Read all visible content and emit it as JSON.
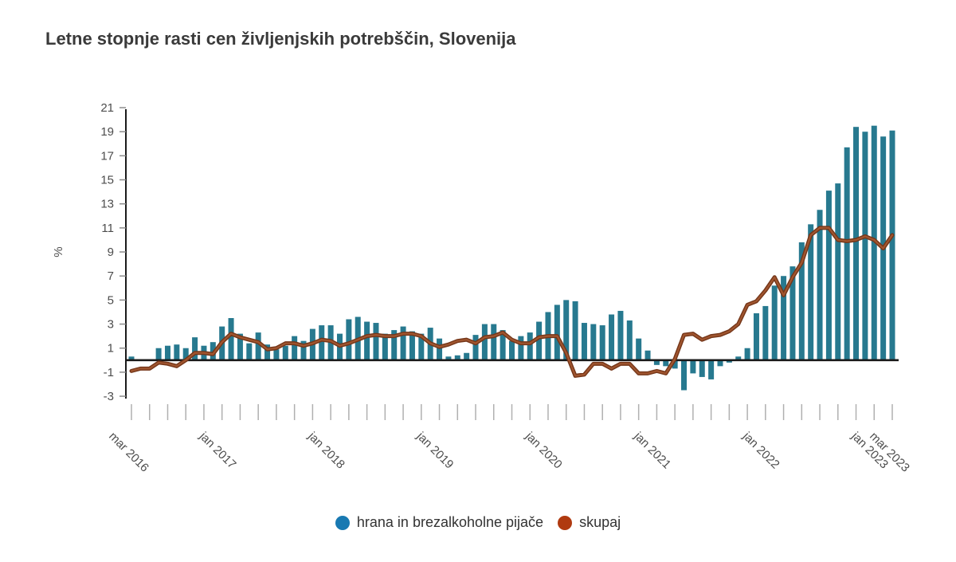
{
  "title": "Letne stopnje rasti cen življenjskih potrebščin, Slovenija",
  "colors": {
    "title_text": "#3a3a3a",
    "bar": "#27798F",
    "line_core": "#A0552F",
    "line_edge": "#743619",
    "legend_dot_food": "#1879B2",
    "legend_dot_total": "#B03A10",
    "axis_line": "#1a1a1a",
    "tick_mark": "#8c8c8c",
    "bottom_tick_mark": "#b0b0b0",
    "tick_text": "#4d4d4d"
  },
  "legend": [
    {
      "label": "hrana in brezalkoholne pijače"
    },
    {
      "label": "skupaj"
    }
  ],
  "y_axis": {
    "label": "%",
    "ticks": [
      21,
      19,
      17,
      15,
      13,
      11,
      9,
      7,
      5,
      3,
      1,
      -1,
      -3
    ],
    "min": -3,
    "max": 21
  },
  "x_axis": {
    "tick_labels": [
      "mar 2016",
      "jan 2017",
      "jan 2018",
      "jan 2019",
      "jan 2020",
      "jan 2021",
      "jan 2022",
      "jan 2023",
      "mar 2023"
    ],
    "tick_month_indices": [
      0,
      10,
      22,
      34,
      46,
      58,
      70,
      82,
      84
    ],
    "minor_tick_every_months": 2
  },
  "chart_data": {
    "type": "bar",
    "title": "Letne stopnje rasti cen življenjskih potrebščin, Slovenija",
    "ylabel": "%",
    "ylim": [
      -3,
      21
    ],
    "grid": false,
    "legend_position": "bottom",
    "categories": [
      "mar 2016",
      "apr 2016",
      "maj 2016",
      "jun 2016",
      "jul 2016",
      "avg 2016",
      "sep 2016",
      "okt 2016",
      "nov 2016",
      "dec 2016",
      "jan 2017",
      "feb 2017",
      "mar 2017",
      "apr 2017",
      "maj 2017",
      "jun 2017",
      "jul 2017",
      "avg 2017",
      "sep 2017",
      "okt 2017",
      "nov 2017",
      "dec 2017",
      "jan 2018",
      "feb 2018",
      "mar 2018",
      "apr 2018",
      "maj 2018",
      "jun 2018",
      "jul 2018",
      "avg 2018",
      "sep 2018",
      "okt 2018",
      "nov 2018",
      "dec 2018",
      "jan 2019",
      "feb 2019",
      "mar 2019",
      "apr 2019",
      "maj 2019",
      "jun 2019",
      "jul 2019",
      "avg 2019",
      "sep 2019",
      "okt 2019",
      "nov 2019",
      "dec 2019",
      "jan 2020",
      "feb 2020",
      "mar 2020",
      "apr 2020",
      "maj 2020",
      "jun 2020",
      "jul 2020",
      "avg 2020",
      "sep 2020",
      "okt 2020",
      "nov 2020",
      "dec 2020",
      "jan 2021",
      "feb 2021",
      "mar 2021",
      "apr 2021",
      "maj 2021",
      "jun 2021",
      "jul 2021",
      "avg 2021",
      "sep 2021",
      "okt 2021",
      "nov 2021",
      "dec 2021",
      "jan 2022",
      "feb 2022",
      "mar 2022",
      "apr 2022",
      "maj 2022",
      "jun 2022",
      "jul 2022",
      "avg 2022",
      "sep 2022",
      "okt 2022",
      "nov 2022",
      "dec 2022",
      "jan 2023",
      "feb 2023",
      "mar 2023"
    ],
    "series": [
      {
        "name": "hrana in brezalkoholne pijače",
        "type": "bar",
        "values": [
          0.3,
          0.0,
          0.0,
          1.0,
          1.2,
          1.3,
          1.0,
          1.9,
          1.2,
          1.5,
          2.8,
          3.5,
          2.2,
          1.4,
          2.3,
          1.3,
          0.9,
          1.2,
          2.0,
          1.6,
          2.6,
          2.9,
          2.9,
          2.2,
          3.4,
          3.6,
          3.2,
          3.1,
          2.2,
          2.5,
          2.8,
          2.4,
          2.2,
          2.7,
          1.8,
          0.3,
          0.4,
          0.6,
          2.1,
          3.0,
          3.0,
          2.5,
          1.6,
          2.0,
          2.3,
          3.2,
          4.0,
          4.6,
          5.0,
          4.9,
          3.1,
          3.0,
          2.9,
          3.8,
          4.1,
          3.3,
          1.8,
          0.8,
          -0.4,
          -0.5,
          -0.7,
          -2.5,
          -1.1,
          -1.4,
          -1.6,
          -0.5,
          -0.2,
          0.3,
          1.0,
          3.9,
          4.5,
          6.2,
          7.0,
          7.8,
          9.8,
          11.3,
          12.5,
          14.1,
          14.7,
          17.7,
          19.4,
          19.0,
          19.5,
          18.6,
          19.1
        ]
      },
      {
        "name": "skupaj",
        "type": "line",
        "values": [
          -0.9,
          -0.7,
          -0.7,
          -0.2,
          -0.3,
          -0.5,
          0.0,
          0.6,
          0.6,
          0.5,
          1.5,
          2.2,
          1.9,
          1.7,
          1.5,
          0.9,
          1.0,
          1.4,
          1.4,
          1.2,
          1.4,
          1.7,
          1.6,
          1.2,
          1.4,
          1.7,
          2.0,
          2.1,
          2.0,
          2.0,
          2.2,
          2.2,
          2.0,
          1.4,
          1.1,
          1.3,
          1.6,
          1.7,
          1.4,
          1.9,
          2.0,
          2.3,
          1.7,
          1.4,
          1.4,
          1.9,
          2.0,
          2.0,
          0.6,
          -1.3,
          -1.2,
          -0.3,
          -0.3,
          -0.7,
          -0.3,
          -0.3,
          -1.1,
          -1.1,
          -0.9,
          -1.1,
          0.1,
          2.1,
          2.2,
          1.7,
          2.0,
          2.1,
          2.4,
          3.0,
          4.6,
          4.9,
          5.8,
          6.9,
          5.4,
          6.9,
          8.1,
          10.4,
          11.0,
          11.0,
          10.0,
          9.9,
          10.0,
          10.3,
          10.0,
          9.3,
          10.4
        ]
      }
    ]
  }
}
